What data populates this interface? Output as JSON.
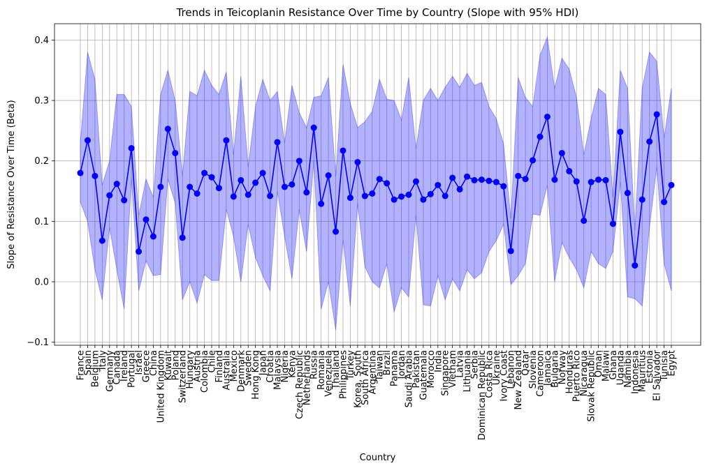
{
  "chart_data": {
    "type": "line",
    "title": "Trends in Teicoplanin Resistance Over Time by Country (Slope with 95% HDI)",
    "xlabel": "Country",
    "ylabel": "Slope of Resistance Over Time (Beta)",
    "ylim": [
      -0.105,
      0.427
    ],
    "yticks": [
      -0.1,
      0.0,
      0.1,
      0.2,
      0.3,
      0.4
    ],
    "ytick_labels": [
      "−0.1",
      "0.0",
      "0.1",
      "0.2",
      "0.3",
      "0.4"
    ],
    "grid": true,
    "colors": {
      "line": "#0000ff",
      "band": "#0000ff",
      "grid": "#b0b0b0"
    },
    "band_alpha": 0.3,
    "categories": [
      "France",
      "Spain",
      "Belgium",
      "Italy",
      "Germany",
      "Canada",
      "Ireland",
      "Portugal",
      "Israel",
      "Greece",
      "China",
      "United Kingdom",
      "Kuwait",
      "Poland",
      "Switzerland",
      "Hungary",
      "Austria",
      "Colombia",
      "Chile",
      "Finland",
      "Australia",
      "Mexico",
      "Denmark",
      "Sweden",
      "Hong Kong",
      "Japan",
      "Croatia",
      "Malaysia",
      "Nigeria",
      "Kenya",
      "Czech Republic",
      "Netherlands",
      "Russia",
      "Romania",
      "Venezuela",
      "Thailand",
      "Philippines",
      "Turkey",
      "Korea, South",
      "South Africa",
      "Argentina",
      "Taiwan",
      "Brazil",
      "Panama",
      "Jordan",
      "Saudi Arabia",
      "Pakistan",
      "Guatemala",
      "Morocco",
      "India",
      "Singapore",
      "Vietnam",
      "Latvia",
      "Lithuania",
      "Serbia",
      "Dominican Republic",
      "Costa Rica",
      "Ukraine",
      "Ivory Coast",
      "Lebanon",
      "New Zealand",
      "Qatar",
      "Slovenia",
      "Cameroon",
      "Jamaica",
      "Bulgaria",
      "Norway",
      "Honduras",
      "Puerto Rico",
      "Nicaragua",
      "Slovak Republic",
      "Oman",
      "Malawi",
      "Ghana",
      "Uganda",
      "Namibia",
      "Indonesia",
      "Mauritius",
      "Estonia",
      "El Salvador",
      "Tunisia",
      "Egypt"
    ],
    "series": [
      {
        "values": [
          0.18,
          0.234,
          0.175,
          0.068,
          0.143,
          0.162,
          0.135,
          0.221,
          0.05,
          0.103,
          0.075,
          0.157,
          0.253,
          0.213,
          0.073,
          0.157,
          0.146,
          0.18,
          0.173,
          0.155,
          0.234,
          0.141,
          0.168,
          0.144,
          0.164,
          0.18,
          0.142,
          0.231,
          0.157,
          0.161,
          0.2,
          0.148,
          0.255,
          0.129,
          0.176,
          0.083,
          0.217,
          0.139,
          0.198,
          0.142,
          0.146,
          0.17,
          0.163,
          0.136,
          0.141,
          0.144,
          0.166,
          0.136,
          0.145,
          0.16,
          0.142,
          0.172,
          0.153,
          0.174,
          0.168,
          0.169,
          0.167,
          0.165,
          0.158,
          0.051,
          0.175,
          0.17,
          0.201,
          0.24,
          0.273,
          0.169,
          0.213,
          0.183,
          0.166,
          0.101,
          0.165,
          0.169,
          0.168,
          0.096,
          0.248,
          0.147,
          0.027,
          0.136,
          0.232,
          0.277,
          0.132,
          0.16
        ]
      },
      {
        "lower": [
          0.132,
          0.1,
          0.02,
          -0.03,
          0.09,
          0.02,
          -0.045,
          0.17,
          -0.015,
          0.035,
          0.01,
          0.012,
          0.17,
          0.13,
          -0.03,
          0.0,
          -0.035,
          0.012,
          0.002,
          0.002,
          0.12,
          0.075,
          0.0,
          0.095,
          0.04,
          0.01,
          -0.015,
          0.15,
          0.075,
          0.005,
          0.12,
          0.05,
          0.2,
          -0.045,
          0.0,
          -0.08,
          0.07,
          -0.04,
          0.13,
          0.025,
          0.0,
          -0.01,
          0.03,
          -0.05,
          -0.01,
          -0.025,
          0.11,
          -0.038,
          -0.04,
          0.01,
          -0.03,
          0.005,
          -0.015,
          0.02,
          0.005,
          0.015,
          0.05,
          0.068,
          0.095,
          -0.005,
          0.01,
          0.03,
          0.112,
          0.11,
          0.16,
          0.0,
          0.065,
          0.04,
          0.02,
          -0.01,
          0.05,
          0.03,
          0.022,
          0.05,
          0.165,
          -0.025,
          -0.028,
          -0.04,
          0.09,
          0.19,
          0.03,
          -0.015
        ],
        "upper": [
          0.23,
          0.38,
          0.335,
          0.16,
          0.2,
          0.31,
          0.31,
          0.29,
          0.11,
          0.17,
          0.14,
          0.31,
          0.35,
          0.3,
          0.175,
          0.315,
          0.308,
          0.35,
          0.325,
          0.31,
          0.347,
          0.21,
          0.34,
          0.19,
          0.29,
          0.335,
          0.3,
          0.315,
          0.23,
          0.325,
          0.28,
          0.255,
          0.305,
          0.308,
          0.338,
          0.175,
          0.36,
          0.295,
          0.255,
          0.265,
          0.282,
          0.335,
          0.302,
          0.3,
          0.268,
          0.338,
          0.22,
          0.3,
          0.32,
          0.3,
          0.322,
          0.34,
          0.322,
          0.345,
          0.325,
          0.33,
          0.29,
          0.27,
          0.228,
          0.105,
          0.338,
          0.305,
          0.29,
          0.375,
          0.405,
          0.32,
          0.37,
          0.352,
          0.305,
          0.21,
          0.27,
          0.32,
          0.31,
          0.14,
          0.35,
          0.32,
          0.085,
          0.32,
          0.38,
          0.365,
          0.238,
          0.32
        ]
      }
    ]
  }
}
